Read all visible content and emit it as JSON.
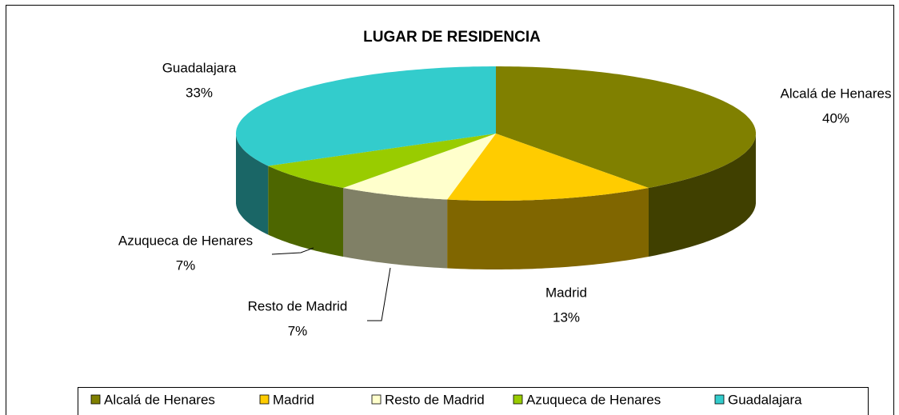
{
  "chart_data": {
    "type": "pie",
    "title": "LUGAR DE RESIDENCIA",
    "categories": [
      "Alcalá de Henares",
      "Madrid",
      "Resto de Madrid",
      "Azuqueca de Henares",
      "Guadalajara"
    ],
    "values": [
      40,
      13,
      7,
      7,
      33
    ],
    "value_labels": [
      "40%",
      "13%",
      "7%",
      "7%",
      "33%"
    ],
    "colors": [
      "#808000",
      "#ffcc00",
      "#ffffcc",
      "#99cc00",
      "#33cccc"
    ],
    "legend": "bottom"
  }
}
